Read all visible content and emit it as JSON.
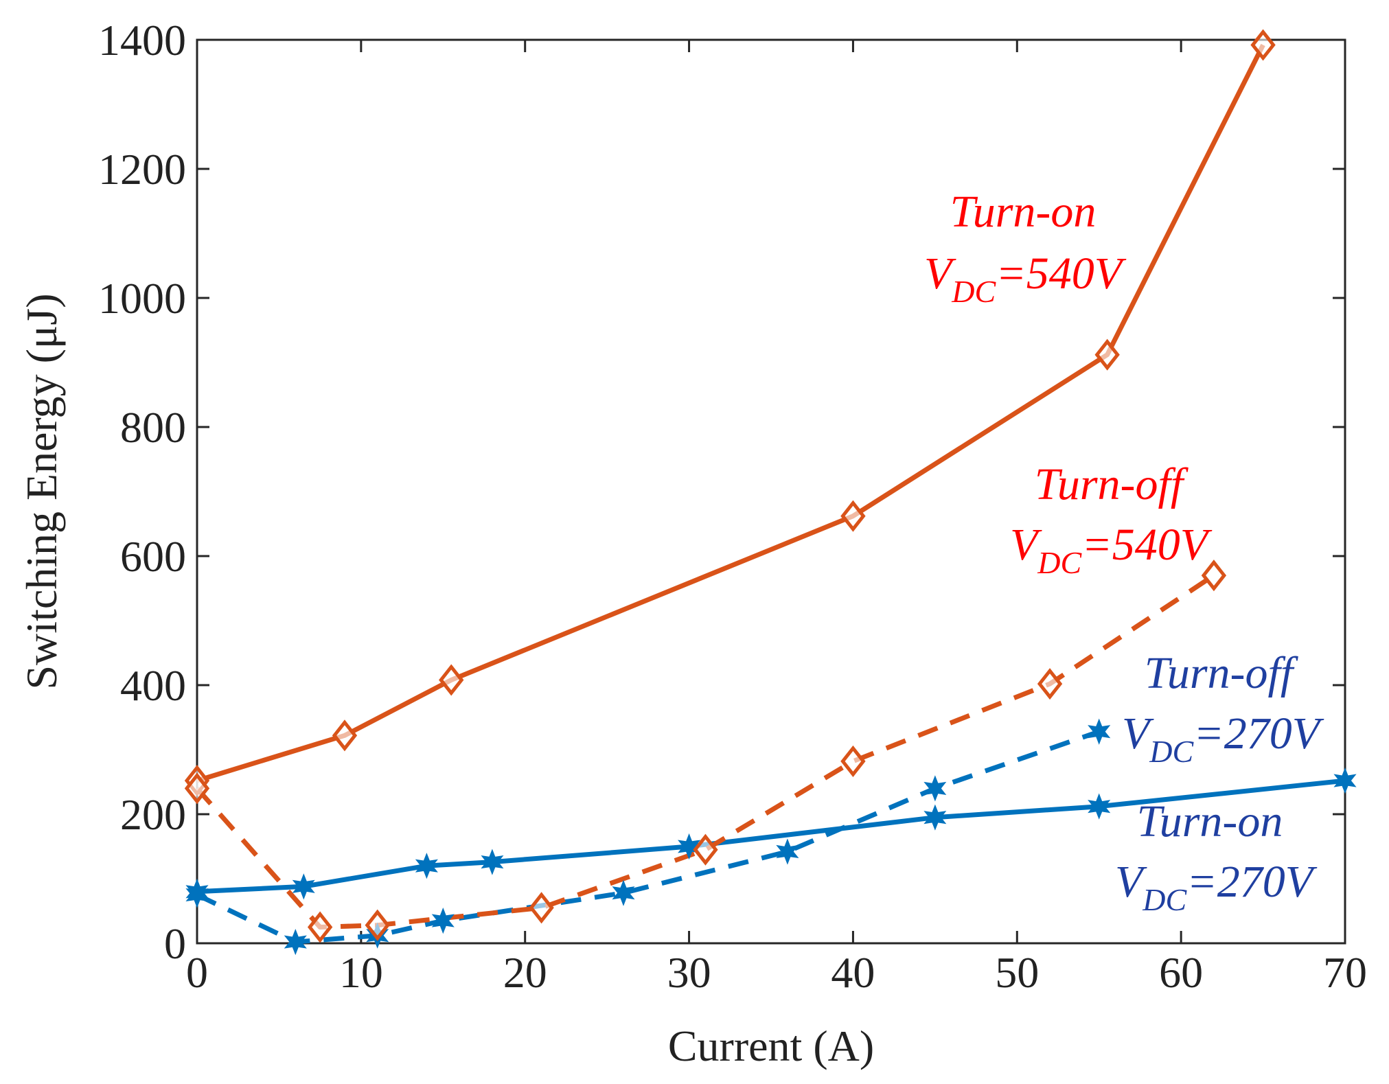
{
  "chart_data": {
    "type": "line",
    "title": "",
    "xlabel": "Current (A)",
    "ylabel": "Switching Energy (μJ)",
    "xlim": [
      0,
      70
    ],
    "ylim": [
      0,
      1400
    ],
    "xticks": [
      0,
      10,
      20,
      30,
      40,
      50,
      60,
      70
    ],
    "yticks": [
      0,
      200,
      400,
      600,
      800,
      1000,
      1200,
      1400
    ],
    "grid": false,
    "colors": {
      "orange": "#D95319",
      "blue": "#0072BD",
      "red_text": "#FF0000",
      "navy_text": "#1F3FA0"
    },
    "series": [
      {
        "name": "Turn-on 540V",
        "color": "#D95319",
        "dash": "solid",
        "marker": "diamond",
        "x": [
          0,
          9,
          15.5,
          40,
          55.5,
          65
        ],
        "y": [
          252,
          322,
          408,
          662,
          912,
          1392
        ]
      },
      {
        "name": "Turn-off 540V",
        "color": "#D95319",
        "dash": "dashed",
        "marker": "diamond",
        "x": [
          0,
          7.5,
          11,
          21,
          31,
          40,
          52,
          62
        ],
        "y": [
          240,
          25,
          28,
          55,
          145,
          282,
          402,
          570
        ]
      },
      {
        "name": "Turn-on 270V",
        "color": "#0072BD",
        "dash": "solid",
        "marker": "star",
        "x": [
          0,
          6.5,
          14,
          18,
          30,
          45,
          55,
          70
        ],
        "y": [
          80,
          88,
          120,
          126,
          150,
          195,
          212,
          252
        ]
      },
      {
        "name": "Turn-off 270V",
        "color": "#0072BD",
        "dash": "dashed",
        "marker": "star",
        "x": [
          0,
          6,
          11,
          15,
          26,
          36,
          45,
          55
        ],
        "y": [
          75,
          2,
          12,
          35,
          78,
          142,
          240,
          328
        ]
      }
    ],
    "annotations": [
      {
        "id": "on540",
        "line1": "Turn-on",
        "main": "V",
        "sub": "DC",
        "rest": "=540V",
        "color": "#FF0000"
      },
      {
        "id": "off540",
        "line1": "Turn-off",
        "main": "V",
        "sub": "DC",
        "rest": "=540V",
        "color": "#FF0000"
      },
      {
        "id": "off270",
        "line1": "Turn-off",
        "main": "V",
        "sub": "DC",
        "rest": "=270V",
        "color": "#1F3FA0"
      },
      {
        "id": "on270",
        "line1": "Turn-on",
        "main": "V",
        "sub": "DC",
        "rest": "=270V",
        "color": "#1F3FA0"
      }
    ]
  }
}
